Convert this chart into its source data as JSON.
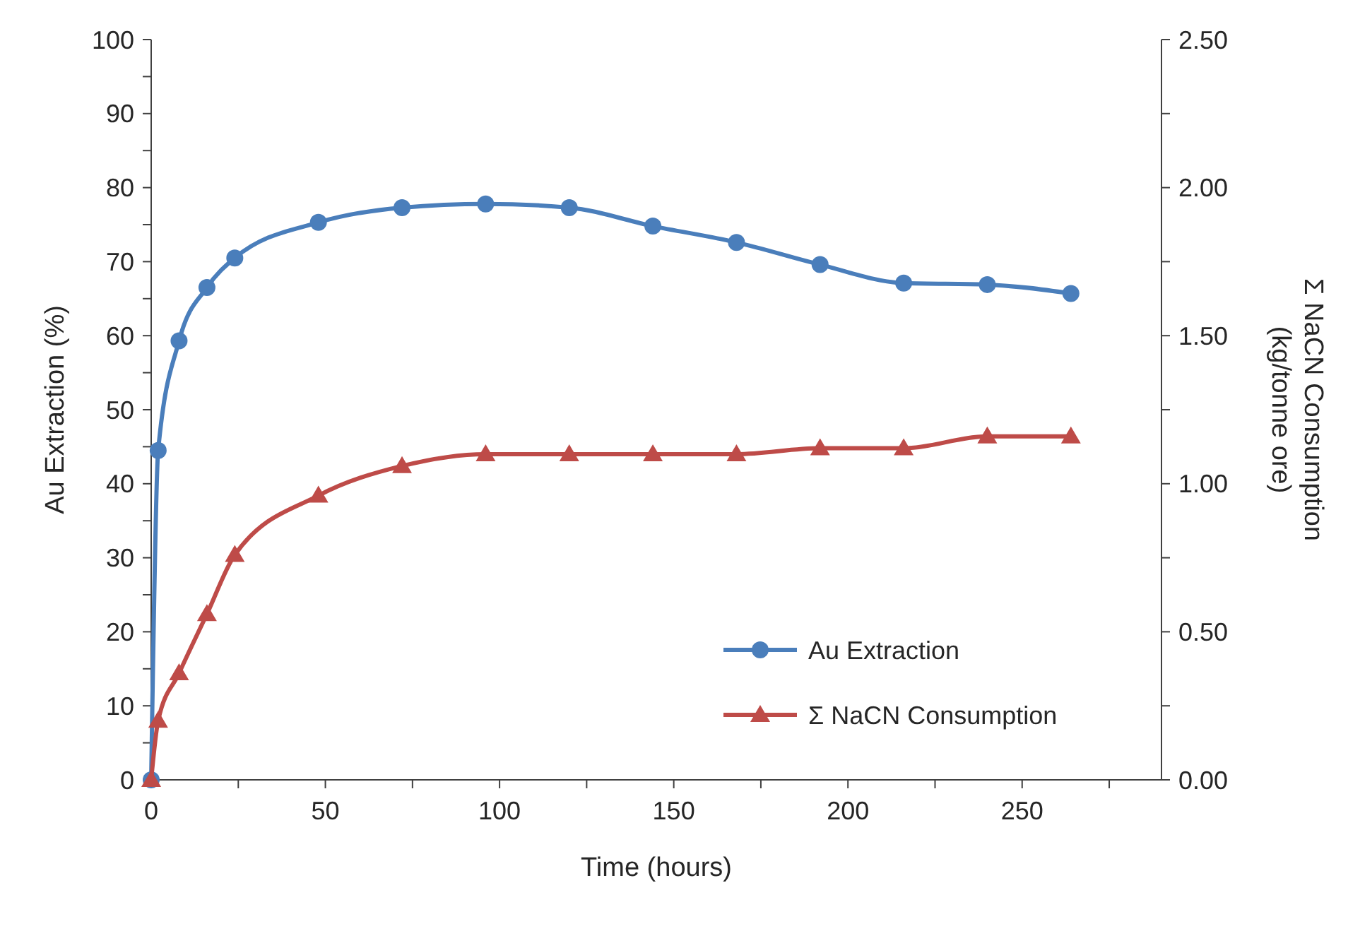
{
  "chart_data": {
    "type": "line",
    "xlabel": "Time (hours)",
    "ylabel": "Au Extraction (%)",
    "y2label": "Σ NaCN Consumption\n(kg/tonne ore)",
    "x": [
      0,
      2,
      8,
      16,
      24,
      48,
      72,
      96,
      120,
      144,
      168,
      192,
      216,
      240,
      264
    ],
    "series": [
      {
        "name": "Au Extraction",
        "color": "#4a7ebb",
        "marker": "circle",
        "values": [
          0,
          44.5,
          59.3,
          66.5,
          70.5,
          75.3,
          77.3,
          77.8,
          77.3,
          74.8,
          72.6,
          69.6,
          67.1,
          66.9,
          65.7
        ]
      },
      {
        "name": "Σ NaCN Consumption",
        "color": "#be4b48",
        "marker": "triangle",
        "axis": "y2",
        "values": [
          0,
          0.2,
          0.36,
          0.56,
          0.76,
          0.96,
          1.06,
          1.1,
          1.1,
          1.1,
          1.1,
          1.12,
          1.12,
          1.16,
          1.16
        ]
      }
    ],
    "xlim": [
      0,
      290
    ],
    "xticks": [
      0,
      {
        "value": 25,
        "label": null
      },
      50,
      {
        "value": 75,
        "label": null
      },
      100,
      {
        "value": 125,
        "label": null
      },
      150,
      {
        "value": 175,
        "label": null
      },
      200,
      {
        "value": 225,
        "label": null
      },
      250,
      {
        "value": 275,
        "label": null
      }
    ],
    "ylim": [
      0,
      100
    ],
    "yticks": [
      0,
      {
        "value": 5,
        "label": null
      },
      10,
      {
        "value": 15,
        "label": null
      },
      20,
      {
        "value": 25,
        "label": null
      },
      30,
      {
        "value": 35,
        "label": null
      },
      40,
      {
        "value": 45,
        "label": null
      },
      50,
      {
        "value": 55,
        "label": null
      },
      60,
      {
        "value": 65,
        "label": null
      },
      70,
      {
        "value": 75,
        "label": null
      },
      80,
      {
        "value": 85,
        "label": null
      },
      90,
      {
        "value": 95,
        "label": null
      },
      100
    ],
    "y2lim": [
      0,
      2.5
    ],
    "y2ticks": [
      {
        "value": 0,
        "label": "0.00"
      },
      {
        "value": 0.25,
        "label": null
      },
      {
        "value": 0.5,
        "label": "0.50"
      },
      {
        "value": 0.75,
        "label": null
      },
      {
        "value": 1,
        "label": "1.00"
      },
      {
        "value": 1.25,
        "label": null
      },
      {
        "value": 1.5,
        "label": "1.50"
      },
      {
        "value": 1.75,
        "label": null
      },
      {
        "value": 2,
        "label": "2.00"
      },
      {
        "value": 2.25,
        "label": null
      },
      {
        "value": 2.5,
        "label": "2.50"
      }
    ],
    "grid": false,
    "legend": "bottom right",
    "line_style": "solid"
  }
}
